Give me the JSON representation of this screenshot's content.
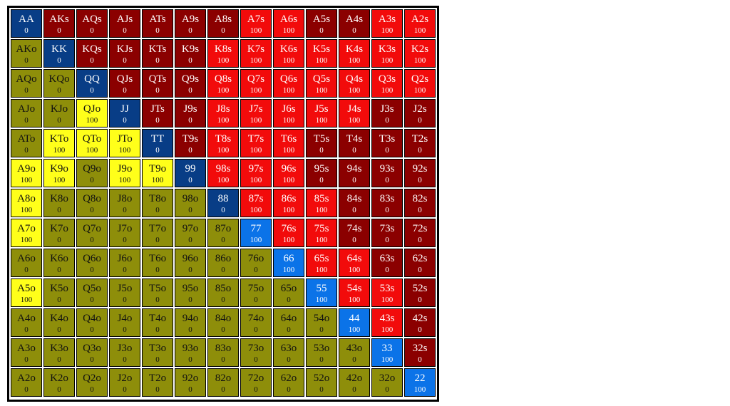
{
  "range_chart": {
    "colors": {
      "pair_zero": "#083d86",
      "pair_hundred": "#0b73e8",
      "suited_zero": "#8b0000",
      "suited_hundred": "#f20b0b",
      "offsuit_zero": "#8e8e0a",
      "offsuit_hundred": "#ffff1a"
    },
    "rows": [
      [
        {
          "hand": "AA",
          "value": "0"
        },
        {
          "hand": "AKs",
          "value": "0"
        },
        {
          "hand": "AQs",
          "value": "0"
        },
        {
          "hand": "AJs",
          "value": "0"
        },
        {
          "hand": "ATs",
          "value": "0"
        },
        {
          "hand": "A9s",
          "value": "0"
        },
        {
          "hand": "A8s",
          "value": "0"
        },
        {
          "hand": "A7s",
          "value": "100"
        },
        {
          "hand": "A6s",
          "value": "100"
        },
        {
          "hand": "A5s",
          "value": "0"
        },
        {
          "hand": "A4s",
          "value": "0"
        },
        {
          "hand": "A3s",
          "value": "100"
        },
        {
          "hand": "A2s",
          "value": "100"
        }
      ],
      [
        {
          "hand": "AKo",
          "value": "0"
        },
        {
          "hand": "KK",
          "value": "0"
        },
        {
          "hand": "KQs",
          "value": "0"
        },
        {
          "hand": "KJs",
          "value": "0"
        },
        {
          "hand": "KTs",
          "value": "0"
        },
        {
          "hand": "K9s",
          "value": "0"
        },
        {
          "hand": "K8s",
          "value": "100"
        },
        {
          "hand": "K7s",
          "value": "100"
        },
        {
          "hand": "K6s",
          "value": "100"
        },
        {
          "hand": "K5s",
          "value": "100"
        },
        {
          "hand": "K4s",
          "value": "100"
        },
        {
          "hand": "K3s",
          "value": "100"
        },
        {
          "hand": "K2s",
          "value": "100"
        }
      ],
      [
        {
          "hand": "AQo",
          "value": "0"
        },
        {
          "hand": "KQo",
          "value": "0"
        },
        {
          "hand": "QQ",
          "value": "0"
        },
        {
          "hand": "QJs",
          "value": "0"
        },
        {
          "hand": "QTs",
          "value": "0"
        },
        {
          "hand": "Q9s",
          "value": "0"
        },
        {
          "hand": "Q8s",
          "value": "100"
        },
        {
          "hand": "Q7s",
          "value": "100"
        },
        {
          "hand": "Q6s",
          "value": "100"
        },
        {
          "hand": "Q5s",
          "value": "100"
        },
        {
          "hand": "Q4s",
          "value": "100"
        },
        {
          "hand": "Q3s",
          "value": "100"
        },
        {
          "hand": "Q2s",
          "value": "100"
        }
      ],
      [
        {
          "hand": "AJo",
          "value": "0"
        },
        {
          "hand": "KJo",
          "value": "0"
        },
        {
          "hand": "QJo",
          "value": "100"
        },
        {
          "hand": "JJ",
          "value": "0"
        },
        {
          "hand": "JTs",
          "value": "0"
        },
        {
          "hand": "J9s",
          "value": "0"
        },
        {
          "hand": "J8s",
          "value": "100"
        },
        {
          "hand": "J7s",
          "value": "100"
        },
        {
          "hand": "J6s",
          "value": "100"
        },
        {
          "hand": "J5s",
          "value": "100"
        },
        {
          "hand": "J4s",
          "value": "100"
        },
        {
          "hand": "J3s",
          "value": "0"
        },
        {
          "hand": "J2s",
          "value": "0"
        }
      ],
      [
        {
          "hand": "ATo",
          "value": "0"
        },
        {
          "hand": "KTo",
          "value": "100"
        },
        {
          "hand": "QTo",
          "value": "100"
        },
        {
          "hand": "JTo",
          "value": "100"
        },
        {
          "hand": "TT",
          "value": "0"
        },
        {
          "hand": "T9s",
          "value": "0"
        },
        {
          "hand": "T8s",
          "value": "100"
        },
        {
          "hand": "T7s",
          "value": "100"
        },
        {
          "hand": "T6s",
          "value": "100"
        },
        {
          "hand": "T5s",
          "value": "0"
        },
        {
          "hand": "T4s",
          "value": "0"
        },
        {
          "hand": "T3s",
          "value": "0"
        },
        {
          "hand": "T2s",
          "value": "0"
        }
      ],
      [
        {
          "hand": "A9o",
          "value": "100"
        },
        {
          "hand": "K9o",
          "value": "100"
        },
        {
          "hand": "Q9o",
          "value": "0"
        },
        {
          "hand": "J9o",
          "value": "100"
        },
        {
          "hand": "T9o",
          "value": "100"
        },
        {
          "hand": "99",
          "value": "0"
        },
        {
          "hand": "98s",
          "value": "100"
        },
        {
          "hand": "97s",
          "value": "100"
        },
        {
          "hand": "96s",
          "value": "100"
        },
        {
          "hand": "95s",
          "value": "0"
        },
        {
          "hand": "94s",
          "value": "0"
        },
        {
          "hand": "93s",
          "value": "0"
        },
        {
          "hand": "92s",
          "value": "0"
        }
      ],
      [
        {
          "hand": "A8o",
          "value": "100"
        },
        {
          "hand": "K8o",
          "value": "0"
        },
        {
          "hand": "Q8o",
          "value": "0"
        },
        {
          "hand": "J8o",
          "value": "0"
        },
        {
          "hand": "T8o",
          "value": "0"
        },
        {
          "hand": "98o",
          "value": "0"
        },
        {
          "hand": "88",
          "value": "0"
        },
        {
          "hand": "87s",
          "value": "100"
        },
        {
          "hand": "86s",
          "value": "100"
        },
        {
          "hand": "85s",
          "value": "100"
        },
        {
          "hand": "84s",
          "value": "0"
        },
        {
          "hand": "83s",
          "value": "0"
        },
        {
          "hand": "82s",
          "value": "0"
        }
      ],
      [
        {
          "hand": "A7o",
          "value": "100"
        },
        {
          "hand": "K7o",
          "value": "0"
        },
        {
          "hand": "Q7o",
          "value": "0"
        },
        {
          "hand": "J7o",
          "value": "0"
        },
        {
          "hand": "T7o",
          "value": "0"
        },
        {
          "hand": "97o",
          "value": "0"
        },
        {
          "hand": "87o",
          "value": "0"
        },
        {
          "hand": "77",
          "value": "100"
        },
        {
          "hand": "76s",
          "value": "100"
        },
        {
          "hand": "75s",
          "value": "100"
        },
        {
          "hand": "74s",
          "value": "0"
        },
        {
          "hand": "73s",
          "value": "0"
        },
        {
          "hand": "72s",
          "value": "0"
        }
      ],
      [
        {
          "hand": "A6o",
          "value": "0"
        },
        {
          "hand": "K6o",
          "value": "0"
        },
        {
          "hand": "Q6o",
          "value": "0"
        },
        {
          "hand": "J6o",
          "value": "0"
        },
        {
          "hand": "T6o",
          "value": "0"
        },
        {
          "hand": "96o",
          "value": "0"
        },
        {
          "hand": "86o",
          "value": "0"
        },
        {
          "hand": "76o",
          "value": "0"
        },
        {
          "hand": "66",
          "value": "100"
        },
        {
          "hand": "65s",
          "value": "100"
        },
        {
          "hand": "64s",
          "value": "100"
        },
        {
          "hand": "63s",
          "value": "0"
        },
        {
          "hand": "62s",
          "value": "0"
        }
      ],
      [
        {
          "hand": "A5o",
          "value": "100"
        },
        {
          "hand": "K5o",
          "value": "0"
        },
        {
          "hand": "Q5o",
          "value": "0"
        },
        {
          "hand": "J5o",
          "value": "0"
        },
        {
          "hand": "T5o",
          "value": "0"
        },
        {
          "hand": "95o",
          "value": "0"
        },
        {
          "hand": "85o",
          "value": "0"
        },
        {
          "hand": "75o",
          "value": "0"
        },
        {
          "hand": "65o",
          "value": "0"
        },
        {
          "hand": "55",
          "value": "100"
        },
        {
          "hand": "54s",
          "value": "100"
        },
        {
          "hand": "53s",
          "value": "100"
        },
        {
          "hand": "52s",
          "value": "0"
        }
      ],
      [
        {
          "hand": "A4o",
          "value": "0"
        },
        {
          "hand": "K4o",
          "value": "0"
        },
        {
          "hand": "Q4o",
          "value": "0"
        },
        {
          "hand": "J4o",
          "value": "0"
        },
        {
          "hand": "T4o",
          "value": "0"
        },
        {
          "hand": "94o",
          "value": "0"
        },
        {
          "hand": "84o",
          "value": "0"
        },
        {
          "hand": "74o",
          "value": "0"
        },
        {
          "hand": "64o",
          "value": "0"
        },
        {
          "hand": "54o",
          "value": "0"
        },
        {
          "hand": "44",
          "value": "100"
        },
        {
          "hand": "43s",
          "value": "100"
        },
        {
          "hand": "42s",
          "value": "0"
        }
      ],
      [
        {
          "hand": "A3o",
          "value": "0"
        },
        {
          "hand": "K3o",
          "value": "0"
        },
        {
          "hand": "Q3o",
          "value": "0"
        },
        {
          "hand": "J3o",
          "value": "0"
        },
        {
          "hand": "T3o",
          "value": "0"
        },
        {
          "hand": "93o",
          "value": "0"
        },
        {
          "hand": "83o",
          "value": "0"
        },
        {
          "hand": "73o",
          "value": "0"
        },
        {
          "hand": "63o",
          "value": "0"
        },
        {
          "hand": "53o",
          "value": "0"
        },
        {
          "hand": "43o",
          "value": "0"
        },
        {
          "hand": "33",
          "value": "100"
        },
        {
          "hand": "32s",
          "value": "0"
        }
      ],
      [
        {
          "hand": "A2o",
          "value": "0"
        },
        {
          "hand": "K2o",
          "value": "0"
        },
        {
          "hand": "Q2o",
          "value": "0"
        },
        {
          "hand": "J2o",
          "value": "0"
        },
        {
          "hand": "T2o",
          "value": "0"
        },
        {
          "hand": "92o",
          "value": "0"
        },
        {
          "hand": "82o",
          "value": "0"
        },
        {
          "hand": "72o",
          "value": "0"
        },
        {
          "hand": "62o",
          "value": "0"
        },
        {
          "hand": "52o",
          "value": "0"
        },
        {
          "hand": "42o",
          "value": "0"
        },
        {
          "hand": "32o",
          "value": "0"
        },
        {
          "hand": "22",
          "value": "100"
        }
      ]
    ]
  }
}
